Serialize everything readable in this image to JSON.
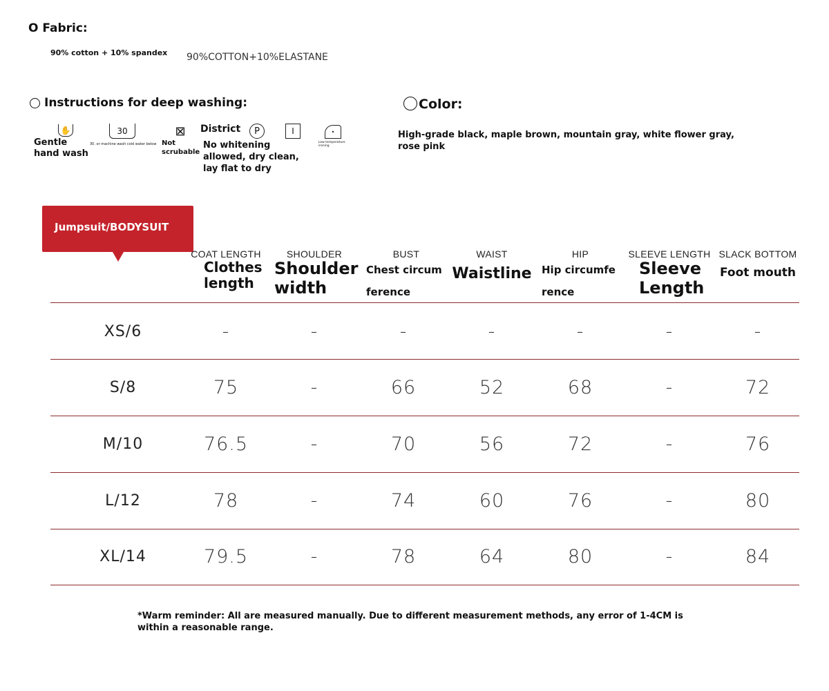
{
  "fabric": {
    "title": "O Fabric:",
    "composition": "90% cotton + 10% spandex",
    "label": "90%COTTON+10%ELASTANE"
  },
  "washing": {
    "title": "Instructions for deep washing:",
    "items": [
      {
        "icon": "hand-wash-icon",
        "label": "Gentle hand wash"
      },
      {
        "icon": "machine-wash-30-icon",
        "symbol": "30",
        "label": "30. or machine wash cold water below"
      },
      {
        "icon": "do-not-tumble-dry-icon",
        "label": "Not scrubable"
      },
      {
        "label": "District"
      },
      {
        "icon": "dry-clean-p-icon",
        "symbol": "P"
      },
      {
        "icon": "dry-flat-icon",
        "symbol": "I"
      },
      {
        "icon": "iron-low-icon",
        "label": "Low temperature ironing"
      }
    ],
    "note": "No whitening allowed, dry clean, lay flat to dry"
  },
  "color": {
    "title": "Color:",
    "values": "High-grade black, maple brown, mountain gray, white flower gray, rose pink"
  },
  "table": {
    "tag": "Jumpsuit/BODYSUIT",
    "accent": "#c4232b",
    "headers": [
      {
        "sub": "COAT LENGTH",
        "main": "Clothes length"
      },
      {
        "sub": "SHOULDER",
        "main": "Shoulder width"
      },
      {
        "sub": "BUST",
        "main": "Chest circumference"
      },
      {
        "sub": "WAIST",
        "main": "Waistline"
      },
      {
        "sub": "HIP",
        "main": "Hip circumference"
      },
      {
        "sub": "SLEEVE LENGTH",
        "main": "Sleeve Length"
      },
      {
        "sub": "SLACK BOTTOM",
        "main": "Foot mouth"
      }
    ],
    "rows": [
      {
        "size": "XS/6",
        "values": [
          "-",
          "-",
          "-",
          "-",
          "-",
          "-",
          "-"
        ]
      },
      {
        "size": "S/8",
        "values": [
          "75",
          "-",
          "66",
          "52",
          "68",
          "-",
          "72"
        ]
      },
      {
        "size": "M/10",
        "values": [
          "76.5",
          "-",
          "70",
          "56",
          "72",
          "-",
          "76"
        ]
      },
      {
        "size": "L/12",
        "values": [
          "78",
          "-",
          "74",
          "60",
          "76",
          "-",
          "80"
        ]
      },
      {
        "size": "XL/14",
        "values": [
          "79.5",
          "-",
          "78",
          "64",
          "80",
          "-",
          "84"
        ]
      }
    ]
  },
  "reminder": "*Warm reminder: All are measured manually. Due to different measurement methods, any error of 1-4CM is within a reasonable range."
}
